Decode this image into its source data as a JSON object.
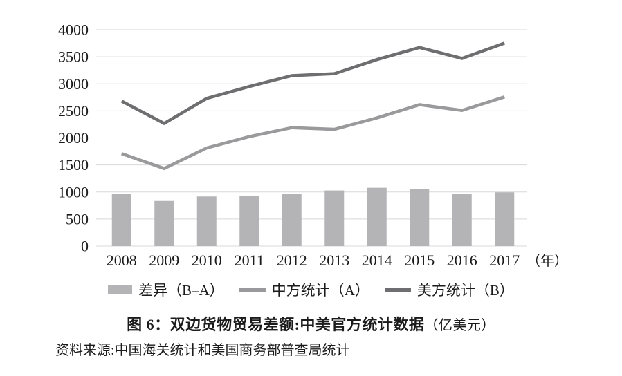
{
  "chart_data": {
    "type": "bar+line",
    "title": "图 6：双边货物贸易差额:中美官方统计数据",
    "title_unit": "（亿美元）",
    "source": "资料来源:中国海关统计和美国商务部普查局统计",
    "x_unit_label": "（年）",
    "categories": [
      "2008",
      "2009",
      "2010",
      "2011",
      "2012",
      "2013",
      "2014",
      "2015",
      "2016",
      "2017"
    ],
    "series": [
      {
        "name": "差异（B–A）",
        "type": "bar",
        "color": "#b4b4b6",
        "values": [
          971,
          834,
          917,
          927,
          962,
          1028,
          1078,
          1058,
          962,
          994
        ]
      },
      {
        "name": "中方统计（A）",
        "type": "line",
        "color": "#9a9a9c",
        "values": [
          1709,
          1434,
          1813,
          2023,
          2189,
          2159,
          2370,
          2614,
          2508,
          2758
        ]
      },
      {
        "name": "美方统计（B）",
        "type": "line",
        "color": "#6e6e70",
        "values": [
          2680,
          2268,
          2730,
          2950,
          3151,
          3187,
          3448,
          3672,
          3470,
          3752
        ]
      }
    ],
    "ylim": [
      0,
      4000
    ],
    "ytick_step": 500,
    "grid": true,
    "legend_position": "bottom",
    "gridline_color": "#d8d8d8",
    "text_color": "#1b1b1b",
    "background_color": "#ffffff"
  }
}
